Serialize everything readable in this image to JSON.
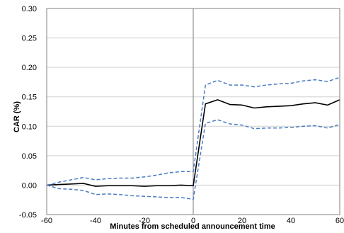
{
  "chart_data": {
    "type": "line",
    "title": "",
    "xlabel": "Minutes from scheduled announcement time",
    "ylabel": "CAR (%)",
    "xlim": [
      -60,
      60
    ],
    "ylim": [
      -0.05,
      0.3
    ],
    "x_ticks": [
      -60,
      -40,
      -20,
      0,
      20,
      40,
      60
    ],
    "x_tick_labels": [
      "-60",
      "-40",
      "-20",
      "0",
      "20",
      "40",
      "60"
    ],
    "y_ticks": [
      -0.05,
      0.0,
      0.05,
      0.1,
      0.15,
      0.2,
      0.25,
      0.3
    ],
    "y_tick_labels": [
      "-0.05",
      "0.00",
      "0.05",
      "0.10",
      "0.15",
      "0.20",
      "0.25",
      "0.30"
    ],
    "grid": "horizontal",
    "vertical_reference_line_at": 0,
    "legend": "none",
    "colors": {
      "mean": "#000000",
      "bands": "#4a7cc2",
      "grid": "#d0d0d0",
      "frame": "#808080"
    },
    "series": [
      {
        "style": "solid",
        "x": [
          -60,
          -55,
          -50,
          -45,
          -40,
          -35,
          -30,
          -25,
          -20,
          -15,
          -10,
          -5,
          0,
          5,
          10,
          15,
          20,
          25,
          30,
          35,
          40,
          45,
          50,
          55,
          60
        ],
        "y": [
          0.0,
          0.001,
          0.002,
          0.003,
          -0.002,
          -0.001,
          -0.001,
          -0.001,
          -0.002,
          -0.001,
          -0.001,
          0.0,
          -0.001,
          0.138,
          0.145,
          0.137,
          0.136,
          0.131,
          0.133,
          0.134,
          0.135,
          0.138,
          0.14,
          0.136,
          0.145
        ]
      },
      {
        "style": "dashed",
        "x": [
          -60,
          -55,
          -50,
          -45,
          -40,
          -35,
          -30,
          -25,
          -20,
          -15,
          -10,
          -5,
          0,
          5,
          10,
          15,
          20,
          25,
          30,
          35,
          40,
          45,
          50,
          55,
          60
        ],
        "y": [
          0.0,
          0.005,
          0.009,
          0.013,
          0.009,
          0.011,
          0.012,
          0.012,
          0.014,
          0.017,
          0.021,
          0.023,
          0.023,
          0.17,
          0.178,
          0.17,
          0.17,
          0.167,
          0.17,
          0.172,
          0.173,
          0.177,
          0.179,
          0.176,
          0.183
        ]
      },
      {
        "style": "dashed",
        "x": [
          -60,
          -55,
          -50,
          -45,
          -40,
          -35,
          -30,
          -25,
          -20,
          -15,
          -10,
          -5,
          0,
          5,
          10,
          15,
          20,
          25,
          30,
          35,
          40,
          45,
          50,
          55,
          60
        ],
        "y": [
          0.0,
          -0.006,
          -0.007,
          -0.009,
          -0.016,
          -0.015,
          -0.016,
          -0.018,
          -0.019,
          -0.02,
          -0.021,
          -0.021,
          -0.024,
          0.105,
          0.111,
          0.104,
          0.102,
          0.096,
          0.097,
          0.097,
          0.098,
          0.1,
          0.101,
          0.097,
          0.103
        ]
      }
    ]
  }
}
